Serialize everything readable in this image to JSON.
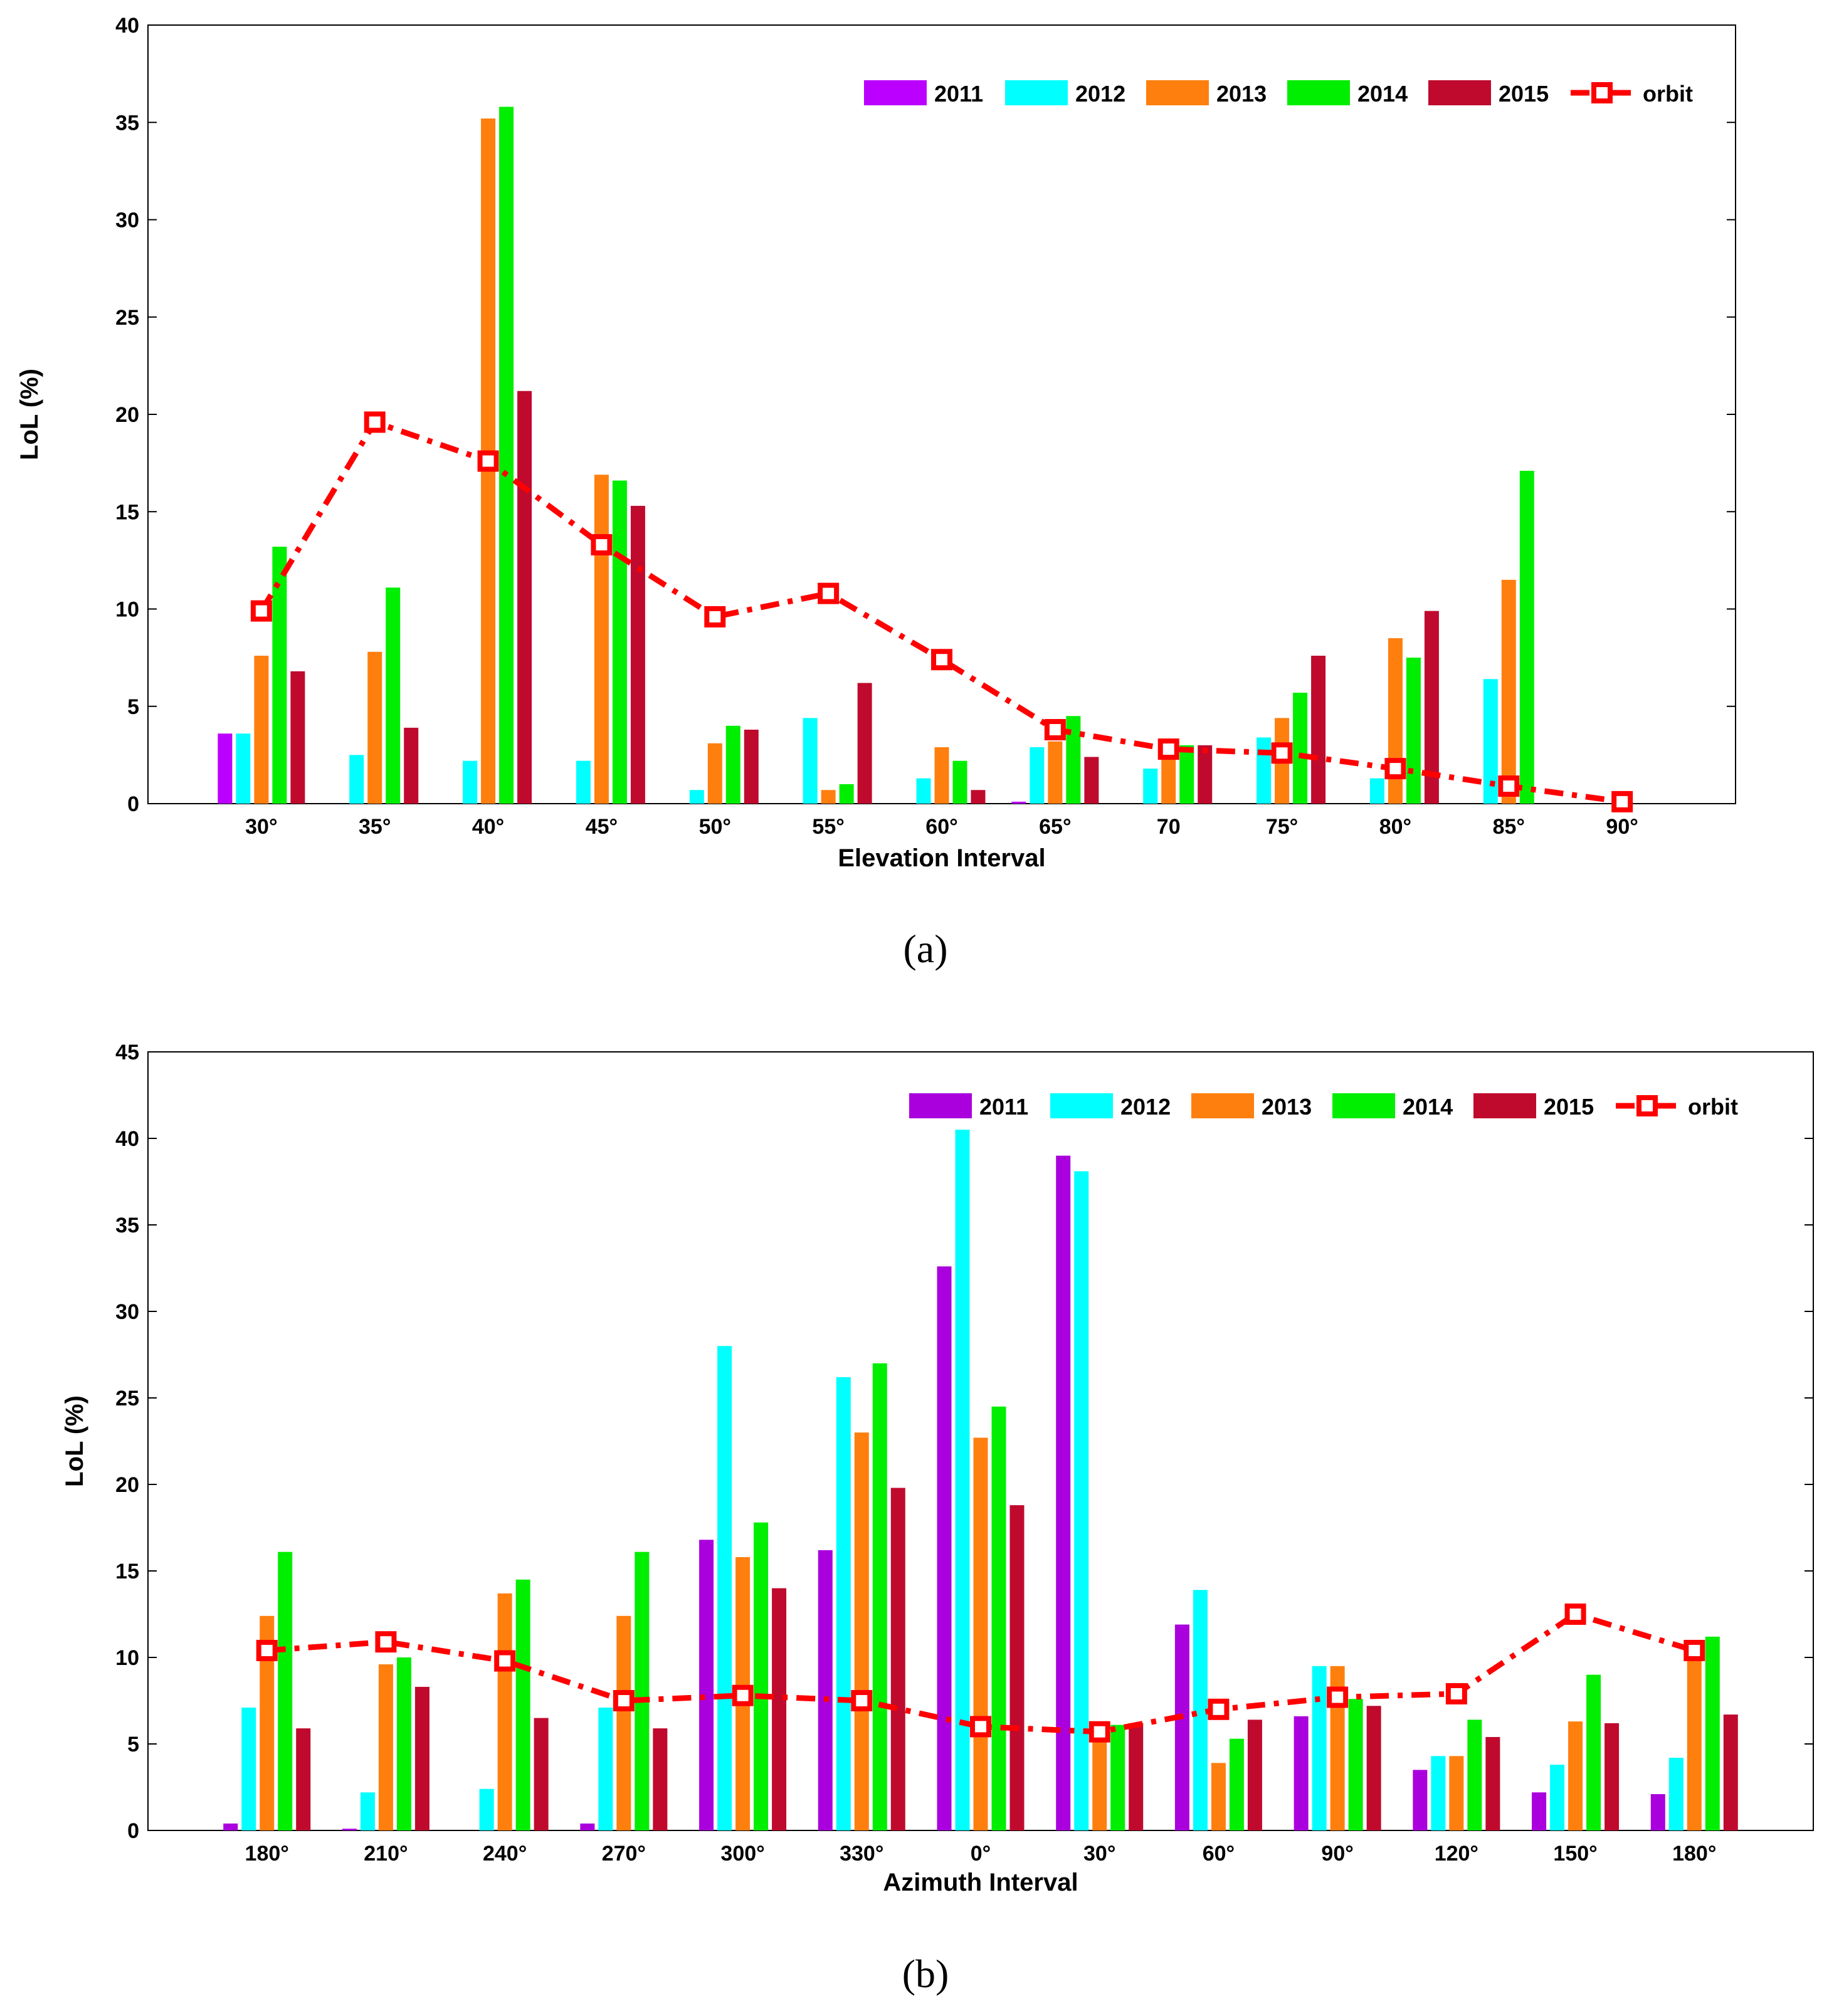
{
  "chart_data": [
    {
      "type": "bar",
      "panel_label": "(a)",
      "xlabel": "Elevation Interval",
      "ylabel": "LoL (%)",
      "ylim": [
        0,
        40
      ],
      "yticks": [
        0,
        5,
        10,
        15,
        20,
        25,
        30,
        35,
        40
      ],
      "categories": [
        "30°",
        "35°",
        "40°",
        "45°",
        "50°",
        "55°",
        "60°",
        "65°",
        "70",
        "75°",
        "80°",
        "85°",
        "90°"
      ],
      "series": [
        {
          "name": "2011",
          "color": "#bb00ff",
          "values": [
            3.6,
            0,
            0,
            0,
            0,
            0,
            0,
            0.1,
            0,
            0,
            0,
            0,
            0
          ]
        },
        {
          "name": "2012",
          "color": "#00ffff",
          "values": [
            3.6,
            2.5,
            2.2,
            2.2,
            0.7,
            4.4,
            1.3,
            2.9,
            1.8,
            3.4,
            1.3,
            6.4,
            0
          ]
        },
        {
          "name": "2013",
          "color": "#ff7f0e",
          "values": [
            7.6,
            7.8,
            35.2,
            16.9,
            3.1,
            0.7,
            2.9,
            3.2,
            2.7,
            4.4,
            8.5,
            11.5,
            0
          ]
        },
        {
          "name": "2014",
          "color": "#00ee00",
          "values": [
            13.2,
            11.1,
            35.8,
            16.6,
            4.0,
            1.0,
            2.2,
            4.5,
            3.0,
            5.7,
            7.5,
            17.1,
            0
          ]
        },
        {
          "name": "2015",
          "color": "#bf0a2e",
          "values": [
            6.8,
            3.9,
            21.2,
            15.3,
            3.8,
            6.2,
            0.7,
            2.4,
            3.0,
            7.6,
            9.9,
            0,
            0
          ]
        }
      ],
      "line": {
        "name": "orbit",
        "color": "#ff0000",
        "values": [
          9.9,
          19.6,
          17.6,
          13.3,
          9.6,
          10.8,
          7.4,
          3.8,
          2.8,
          2.6,
          1.8,
          0.9,
          0.1
        ]
      }
    },
    {
      "type": "bar",
      "panel_label": "(b)",
      "xlabel": "Azimuth Interval",
      "ylabel": "LoL (%)",
      "ylim": [
        0,
        45
      ],
      "yticks": [
        0,
        5,
        10,
        15,
        20,
        25,
        30,
        35,
        40,
        45
      ],
      "categories": [
        "180°",
        "210°",
        "240°",
        "270°",
        "300°",
        "330°",
        "0°",
        "30°",
        "60°",
        "90°",
        "120°",
        "150°",
        "180°"
      ],
      "series": [
        {
          "name": "2011",
          "color": "#aa00dd",
          "values": [
            0.4,
            0.1,
            0,
            0.4,
            16.8,
            16.2,
            32.6,
            39.0,
            11.9,
            6.6,
            3.5,
            2.2,
            2.1
          ]
        },
        {
          "name": "2012",
          "color": "#00ffff",
          "values": [
            7.1,
            2.2,
            2.4,
            7.1,
            28.0,
            26.2,
            40.5,
            38.1,
            13.9,
            9.5,
            4.3,
            3.8,
            4.2
          ]
        },
        {
          "name": "2013",
          "color": "#ff7f0e",
          "values": [
            12.4,
            9.6,
            13.7,
            12.4,
            15.8,
            23.0,
            22.7,
            5.9,
            3.9,
            9.5,
            4.3,
            6.3,
            10.4
          ]
        },
        {
          "name": "2014",
          "color": "#00ee00",
          "values": [
            16.1,
            10.0,
            14.5,
            16.1,
            17.8,
            27.0,
            24.5,
            6.1,
            5.3,
            7.6,
            6.4,
            9.0,
            11.2
          ]
        },
        {
          "name": "2015",
          "color": "#bf0a2e",
          "values": [
            5.9,
            8.3,
            6.5,
            5.9,
            14.0,
            19.8,
            18.8,
            6.2,
            6.4,
            7.2,
            5.4,
            6.2,
            6.7
          ]
        }
      ],
      "line": {
        "name": "orbit",
        "color": "#ff0000",
        "values": [
          10.4,
          10.9,
          9.8,
          7.5,
          7.8,
          7.5,
          6.0,
          5.7,
          7.0,
          7.7,
          7.9,
          12.5,
          10.4
        ]
      }
    }
  ]
}
